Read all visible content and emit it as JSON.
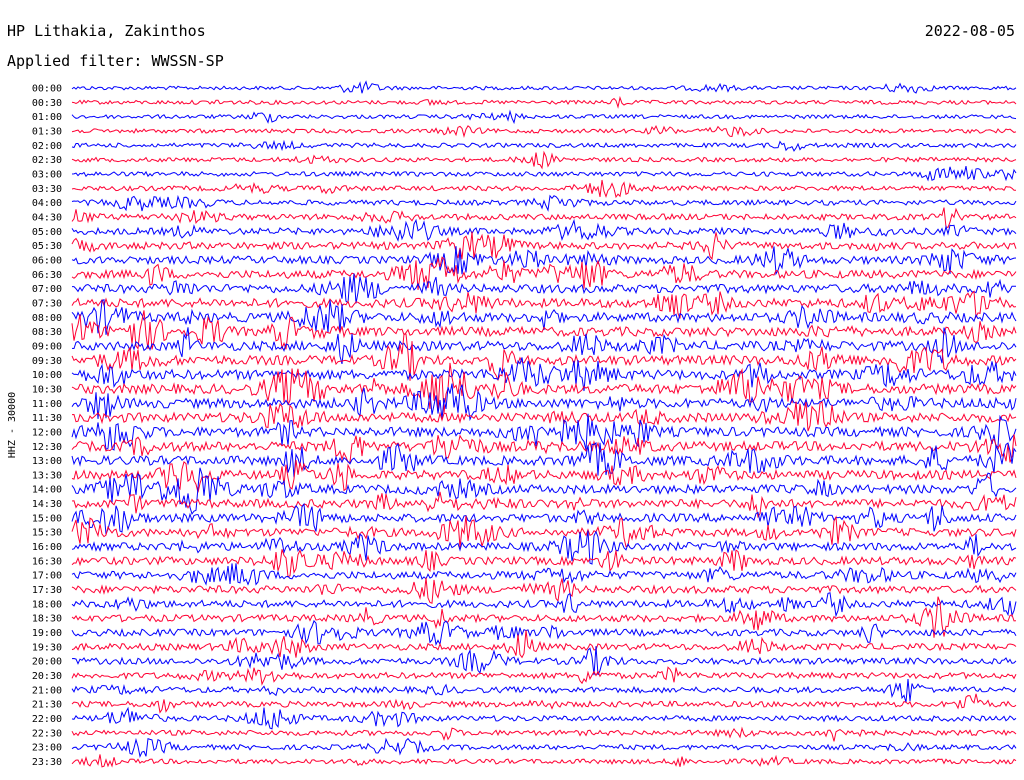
{
  "header": {
    "station": "HP Lithakia, Zakinthos",
    "date": "2022-08-05",
    "filter": "Applied filter: WWSSN-SP"
  },
  "chart_data": {
    "type": "line",
    "title": "HP Lithakia, Zakinthos",
    "ylabel": "HHZ - 30000",
    "row_interval_minutes": 30,
    "row_labels": [
      "00:00",
      "00:30",
      "01:00",
      "01:30",
      "02:00",
      "02:30",
      "03:00",
      "03:30",
      "04:00",
      "04:30",
      "05:00",
      "05:30",
      "06:00",
      "06:30",
      "07:00",
      "07:30",
      "08:00",
      "08:30",
      "09:00",
      "09:30",
      "10:00",
      "10:30",
      "11:00",
      "11:30",
      "12:00",
      "12:30",
      "13:00",
      "13:30",
      "14:00",
      "14:30",
      "15:00",
      "15:30",
      "16:00",
      "16:30",
      "17:00",
      "17:30",
      "18:00",
      "18:30",
      "19:00",
      "19:30",
      "20:00",
      "20:30",
      "21:00",
      "21:30",
      "22:00",
      "22:30",
      "23:00",
      "23:30"
    ],
    "series_colors": [
      "#0000ff",
      "#ff0033"
    ],
    "activity_by_row": [
      0.6,
      0.7,
      0.7,
      0.8,
      0.9,
      0.9,
      1.0,
      1.1,
      1.3,
      1.6,
      1.9,
      2.2,
      2.4,
      2.6,
      2.8,
      3.0,
      3.1,
      3.1,
      3.2,
      3.2,
      3.3,
      3.3,
      3.3,
      3.2,
      3.2,
      3.2,
      3.1,
      3.0,
      2.9,
      2.8,
      2.7,
      2.6,
      2.5,
      2.5,
      2.4,
      2.3,
      2.2,
      2.1,
      2.0,
      1.9,
      1.8,
      1.7,
      1.6,
      1.5,
      1.4,
      1.3,
      1.2,
      1.1
    ]
  }
}
